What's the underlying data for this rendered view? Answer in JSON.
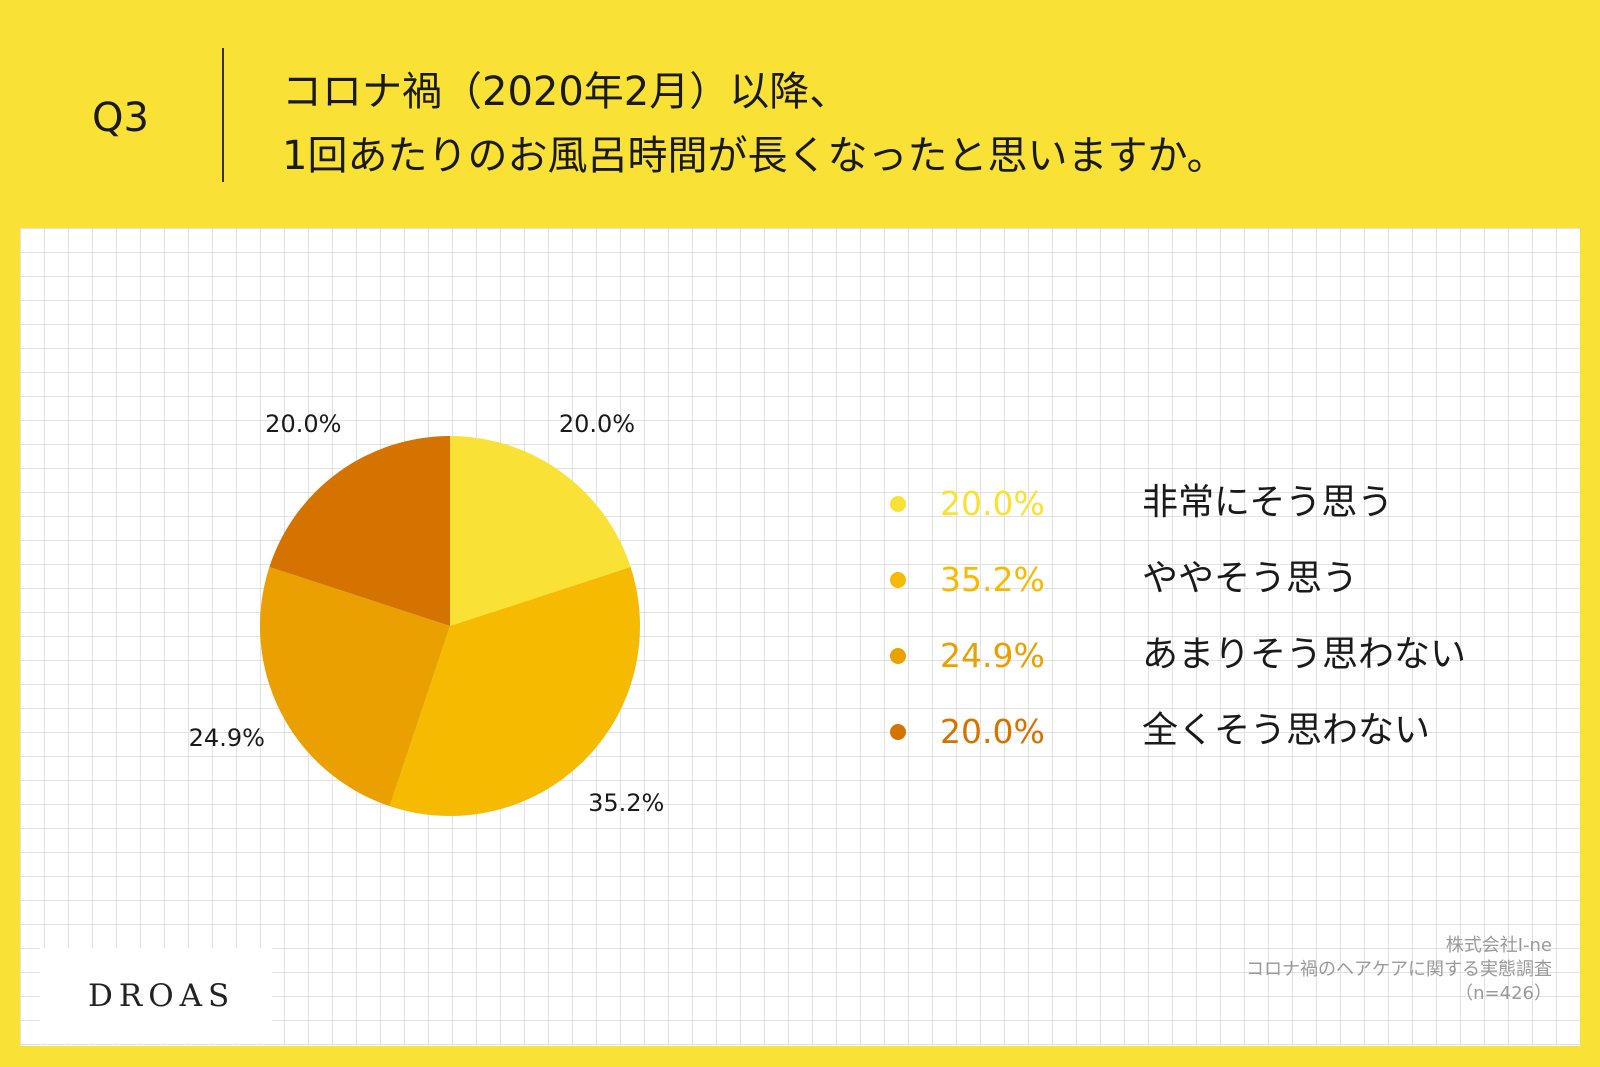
{
  "header": {
    "question_no": "Q3",
    "title_line1": "コロナ禍（2020年2月）以降、",
    "title_line2": "1回あたりのお風呂時間が長くなったと思いますか。"
  },
  "chart_data": {
    "type": "pie",
    "title": "",
    "categories": [
      "非常にそう思う",
      "ややそう思う",
      "あまりそう思わない",
      "全くそう思わない"
    ],
    "values": [
      20.0,
      35.2,
      24.9,
      20.0
    ],
    "labels": [
      "20.0%",
      "35.2%",
      "24.9%",
      "20.0%"
    ],
    "colors": [
      "#f9e235",
      "#f6bb00",
      "#e9a000",
      "#d47300"
    ],
    "legend_position": "right"
  },
  "footer": {
    "logo": "DROAS",
    "source_line1": "株式会社I-ne",
    "source_line2": "コロナ禍のヘアケアに関する実態調査",
    "source_line3": "（n=426）"
  }
}
